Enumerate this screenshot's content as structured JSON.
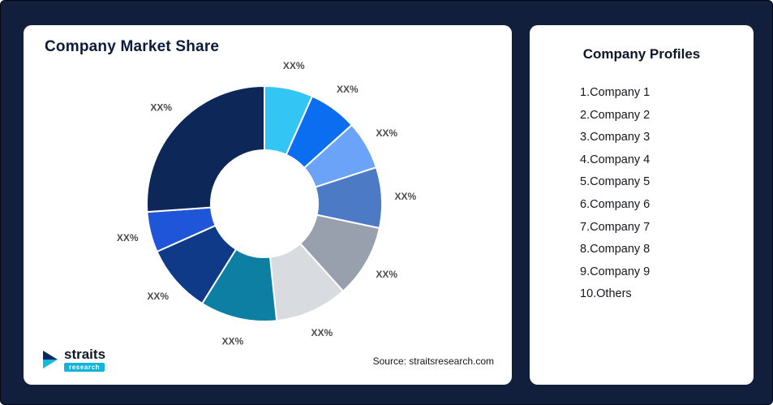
{
  "left_card": {
    "title": "Company Market Share",
    "source": "Source: straitsresearch.com",
    "logo": {
      "brand": "straits",
      "sub": "research"
    }
  },
  "right_card": {
    "title": "Company Profiles",
    "items": [
      "1.Company 1",
      "2.Company 2",
      "3.Company 3",
      "4.Company 4",
      "5.Company 5",
      "6.Company 6",
      "7.Company 7",
      "8.Company 8",
      "9.Company 9",
      "10.Others"
    ]
  },
  "chart_data": {
    "type": "pie",
    "subtype": "donut",
    "title": "Company Market Share",
    "start_angle_deg": 0,
    "clockwise": true,
    "donut_hole_ratio": 0.45,
    "legend": "none",
    "segments": [
      {
        "label": "XX%",
        "angle_deg": 24,
        "color": "#33c5f3"
      },
      {
        "label": "XX%",
        "angle_deg": 24,
        "color": "#0b6df0"
      },
      {
        "label": "XX%",
        "angle_deg": 24,
        "color": "#6aa3f8"
      },
      {
        "label": "XX%",
        "angle_deg": 30,
        "color": "#4d7ac5"
      },
      {
        "label": "XX%",
        "angle_deg": 36,
        "color": "#97a0ac"
      },
      {
        "label": "XX%",
        "angle_deg": 36,
        "color": "#d8dce1"
      },
      {
        "label": "XX%",
        "angle_deg": 38,
        "color": "#0d7fa3"
      },
      {
        "label": "XX%",
        "angle_deg": 34,
        "color": "#0e3a87"
      },
      {
        "label": "XX%",
        "angle_deg": 20,
        "color": "#1f55d9"
      },
      {
        "label": "XX%",
        "angle_deg": 94,
        "color": "#0d2758"
      }
    ]
  },
  "colors": {
    "background": "#111f3d",
    "card": "#ffffff",
    "title": "#0c1a3c",
    "slice_label": "#4d4d4d",
    "logo_teal": "#14b4da"
  }
}
